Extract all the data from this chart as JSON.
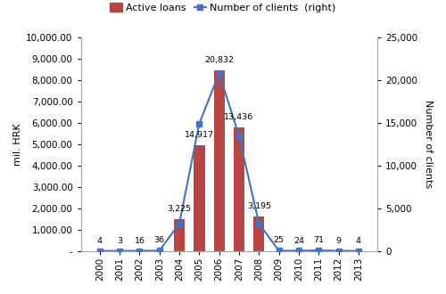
{
  "years": [
    "2000",
    "2001",
    "2002",
    "2003",
    "2004",
    "2005",
    "2006",
    "2007",
    "2008",
    "2009",
    "2010",
    "2011",
    "2012",
    "2013"
  ],
  "bar_values_hrk": [
    0,
    0,
    0,
    0,
    1480,
    4950,
    8480,
    5780,
    1620,
    0,
    0,
    0,
    0,
    0
  ],
  "line_values_clients": [
    4,
    3,
    16,
    36,
    3225,
    14917,
    20832,
    13436,
    3195,
    25,
    24,
    71,
    9,
    4
  ],
  "bar_annotations": [
    "4",
    "3",
    "16",
    "36",
    "3,225",
    "14,917",
    "20,832",
    "13,436",
    "3,195",
    "25",
    "24",
    "71",
    "9",
    "4"
  ],
  "ann_offset_y": [
    6,
    6,
    6,
    6,
    6,
    6,
    6,
    6,
    6,
    6,
    6,
    6,
    6,
    6
  ],
  "bar_color": "#b94444",
  "line_color": "#4472c4",
  "marker_color": "#4472c4",
  "marker_style": "s",
  "marker_size": 4,
  "line_width": 1.5,
  "ylabel_left": "mil. HRK",
  "ylabel_right": "Number of clients",
  "ylim_left": [
    0,
    10000
  ],
  "ylim_right": [
    0,
    25000
  ],
  "yticks_left": [
    0,
    1000,
    2000,
    3000,
    4000,
    5000,
    6000,
    7000,
    8000,
    9000,
    10000
  ],
  "ytick_left_labels": [
    "-",
    "1,000.00",
    "2,000.00",
    "3,000.00",
    "4,000.00",
    "5,000.00",
    "6,000.00",
    "7,000.00",
    "8,000.00",
    "9,000.00",
    "10,000.00"
  ],
  "yticks_right": [
    0,
    5000,
    10000,
    15000,
    20000,
    25000
  ],
  "ytick_right_labels": [
    "0",
    "5,000",
    "10,000",
    "15,000",
    "20,000",
    "25,000"
  ],
  "legend_bar_label": "Active loans",
  "legend_line_label": "Number of clients  (right)",
  "bar_width": 0.55,
  "fig_bg": "#ffffff",
  "spine_color": "#aaaaaa",
  "tick_fontsize": 7.5,
  "ylabel_fontsize": 8,
  "ann_fontsize": 6.8,
  "legend_fontsize": 8
}
